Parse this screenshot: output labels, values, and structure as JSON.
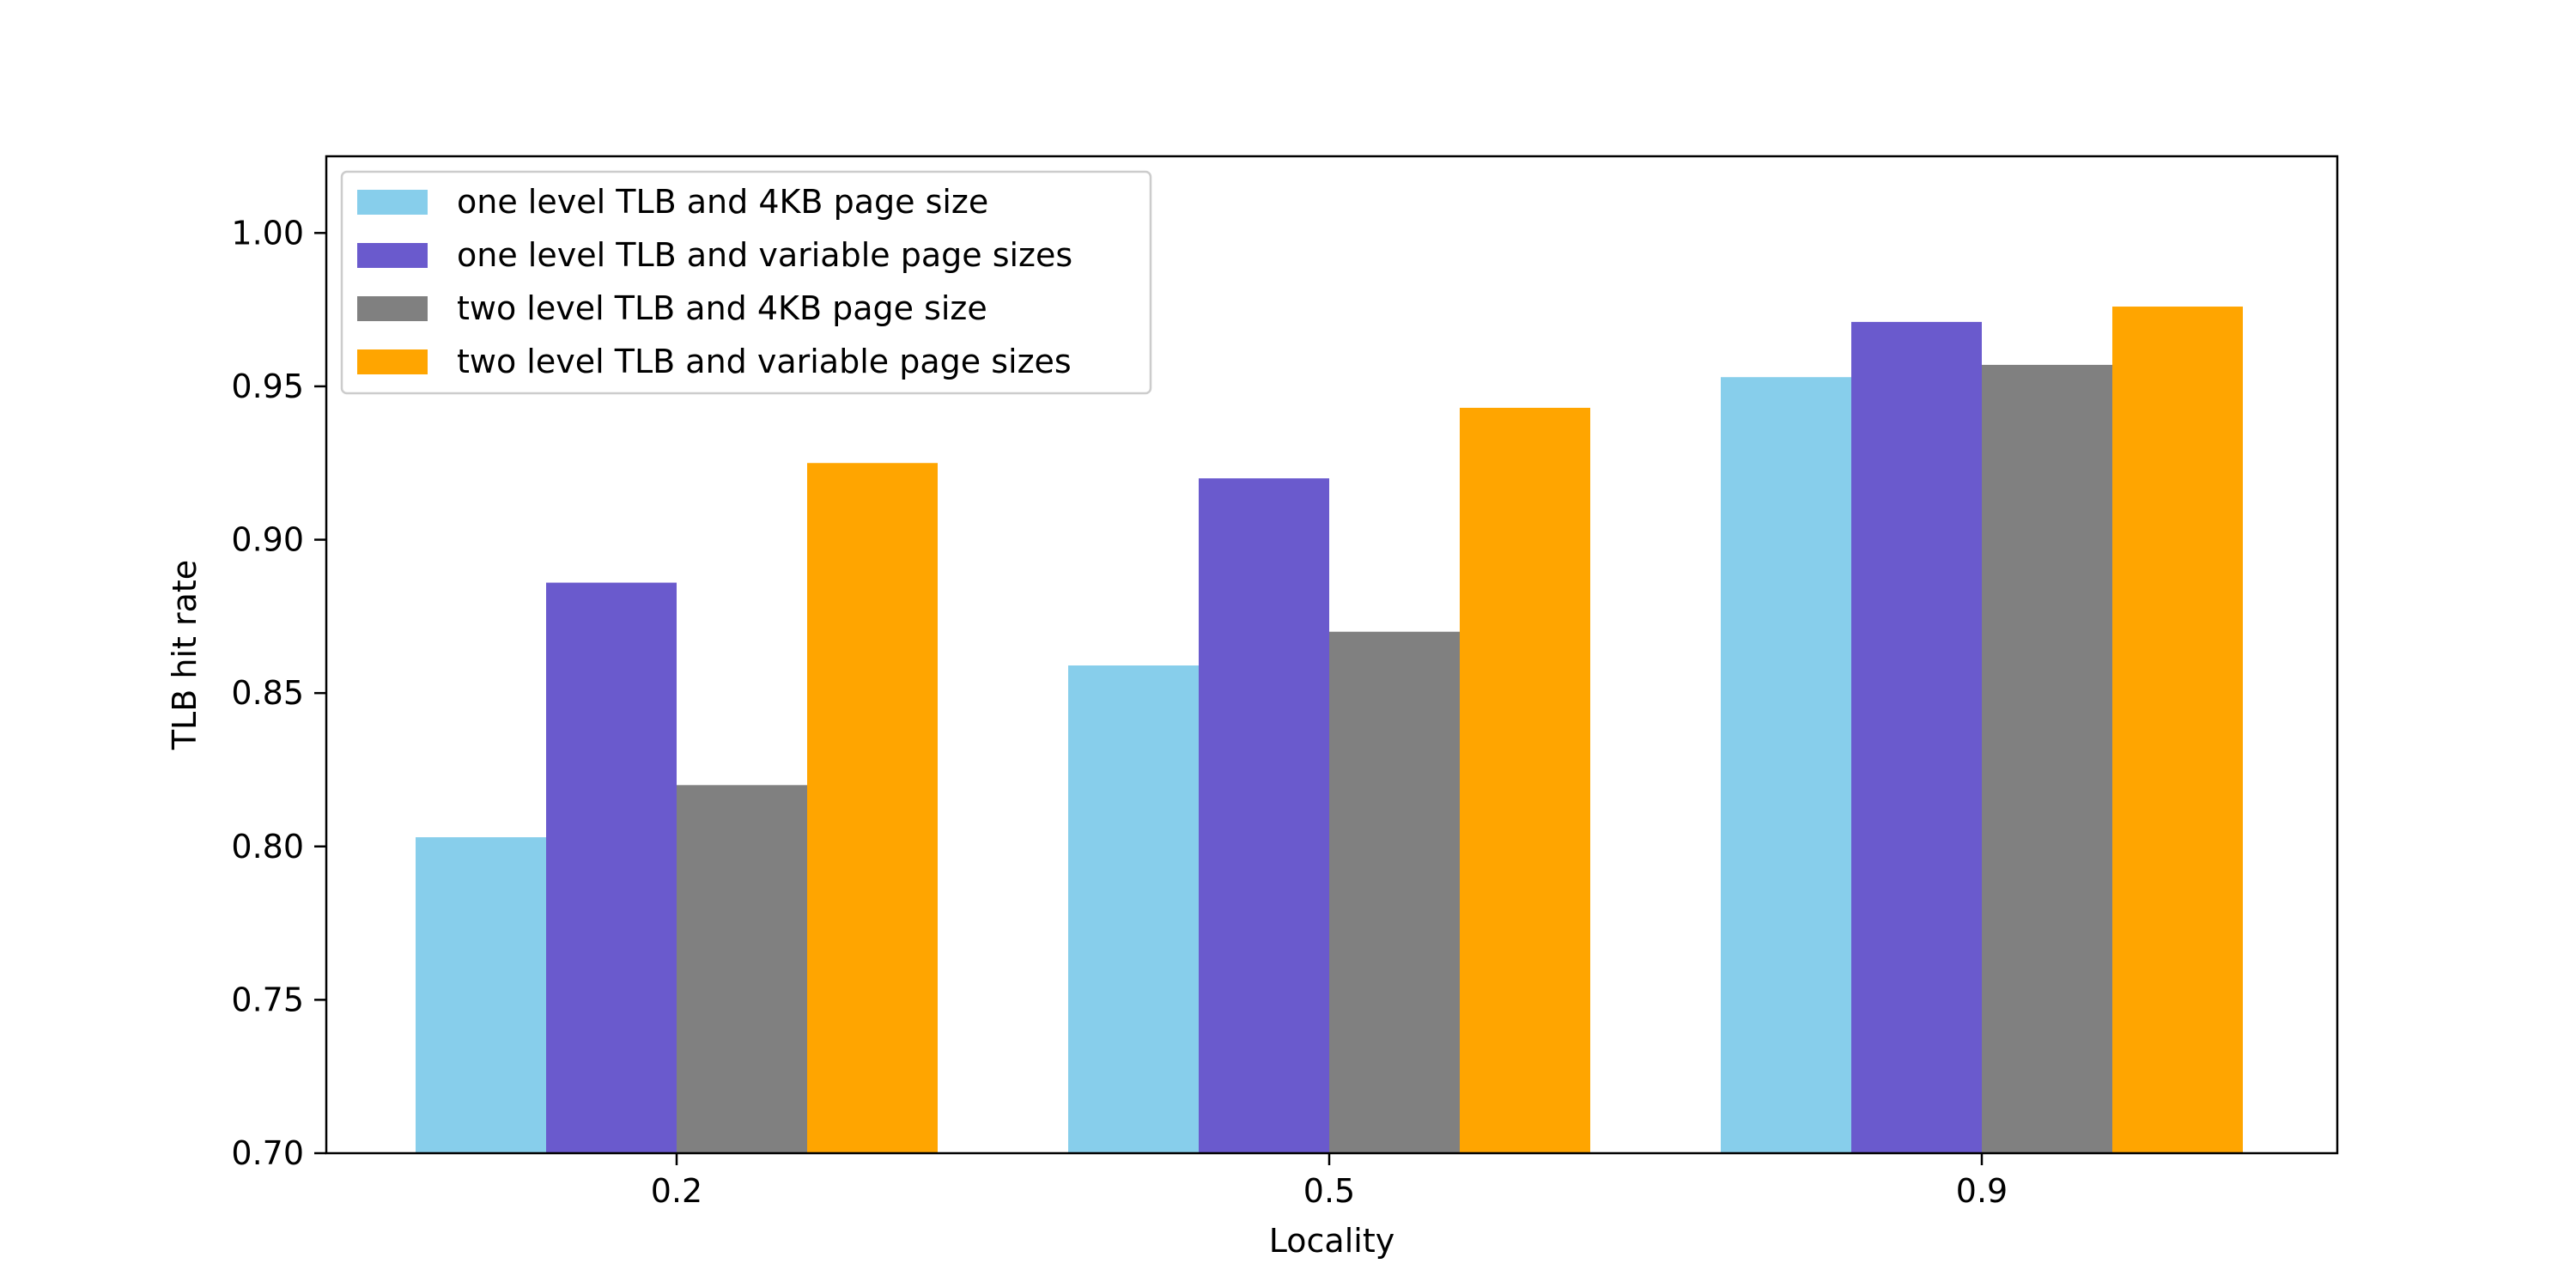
{
  "chart_data": {
    "type": "bar",
    "title": "",
    "xlabel": "Locality",
    "ylabel": "TLB hit rate",
    "categories": [
      "0.2",
      "0.5",
      "0.9"
    ],
    "ylim": [
      0.7,
      1.025
    ],
    "yticks": [
      "0.70",
      "0.75",
      "0.80",
      "0.85",
      "0.90",
      "0.95",
      "1.00"
    ],
    "grid": false,
    "legend_position": "top-left",
    "series": [
      {
        "name": "one level TLB and 4KB page size",
        "color": "#87ceeb",
        "values": [
          0.803,
          0.859,
          0.953
        ]
      },
      {
        "name": "one level TLB and variable page sizes",
        "color": "#6a5acd",
        "values": [
          0.886,
          0.92,
          0.971
        ]
      },
      {
        "name": "two level TLB and 4KB page size",
        "color": "#808080",
        "values": [
          0.82,
          0.87,
          0.957
        ]
      },
      {
        "name": "two level TLB and variable page sizes",
        "color": "#ffa500",
        "values": [
          0.925,
          0.943,
          0.976
        ]
      }
    ]
  }
}
